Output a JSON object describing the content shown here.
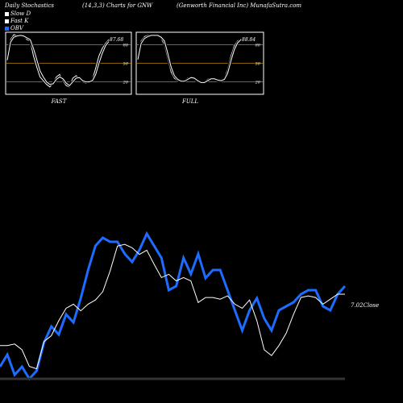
{
  "header": {
    "left": "Daily Stochastics",
    "mid": "(14,3,3) Charts for GNW",
    "right": "(Genworth Financial Inc) MunafaSutra.com"
  },
  "legend": [
    {
      "label": "Slow  D",
      "color": "#ffffff"
    },
    {
      "label": "Fast K",
      "color": "#ffffff"
    },
    {
      "label": "OBV",
      "color": "#1e6cff"
    }
  ],
  "colors": {
    "background": "#000000",
    "obv": "#1e6cff",
    "price": "#ffffff",
    "refline": "#b8860b"
  },
  "chart_data": [
    {
      "type": "line",
      "title": "FAST",
      "last_value_label": "87.68",
      "ylim": [
        0,
        100
      ],
      "yticks": [
        {
          "value": 80,
          "label": "80"
        },
        {
          "value": 50,
          "label": "50"
        },
        {
          "value": 20,
          "label": "20"
        }
      ],
      "series": [
        {
          "name": "Fast K",
          "values": [
            58,
            88,
            96,
            95,
            96,
            94,
            88,
            86,
            62,
            44,
            28,
            22,
            16,
            12,
            18,
            28,
            32,
            22,
            14,
            12,
            26,
            30,
            26,
            20,
            18,
            20,
            24,
            42,
            62,
            74,
            82,
            88
          ]
        },
        {
          "name": "Slow  D",
          "values": [
            55,
            84,
            92,
            94,
            95,
            94,
            91,
            88,
            74,
            56,
            38,
            28,
            20,
            16,
            17,
            24,
            28,
            25,
            18,
            14,
            20,
            26,
            27,
            22,
            20,
            20,
            22,
            32,
            50,
            66,
            78,
            85
          ]
        }
      ]
    },
    {
      "type": "line",
      "title": "FULL",
      "last_value_label": "88.84",
      "ylim": [
        0,
        100
      ],
      "yticks": [
        {
          "value": 80,
          "label": "80"
        },
        {
          "value": 50,
          "label": "50"
        },
        {
          "value": 20,
          "label": "20"
        }
      ],
      "series": [
        {
          "name": "Fast K",
          "values": [
            60,
            86,
            93,
            95,
            96,
            96,
            94,
            90,
            80,
            58,
            36,
            26,
            22,
            20,
            22,
            26,
            28,
            24,
            20,
            18,
            20,
            24,
            26,
            24,
            22,
            22,
            26,
            40,
            62,
            78,
            86,
            89
          ]
        },
        {
          "name": "Slow  D",
          "values": [
            56,
            82,
            90,
            93,
            95,
            95,
            95,
            92,
            86,
            66,
            44,
            30,
            24,
            21,
            21,
            24,
            27,
            26,
            22,
            19,
            19,
            22,
            25,
            25,
            23,
            22,
            24,
            34,
            54,
            72,
            83,
            88
          ]
        }
      ]
    },
    {
      "type": "line",
      "last_value_label": "7.02",
      "value_suffix": "Close",
      "series": [
        {
          "name": "Close",
          "values": [
            6.4,
            6.4,
            6.42,
            6.35,
            6.15,
            6.12,
            6.45,
            6.52,
            6.7,
            6.85,
            6.9,
            6.82,
            6.9,
            6.95,
            7.05,
            7.3,
            7.6,
            7.62,
            7.58,
            7.5,
            7.55,
            7.38,
            7.22,
            7.26,
            7.18,
            7.22,
            7.18,
            6.92,
            6.98,
            6.98,
            6.96,
            7.0,
            6.9,
            6.85,
            6.95,
            6.7,
            6.35,
            6.28,
            6.4,
            6.55,
            6.78,
            6.98,
            7.0,
            6.98,
            6.9,
            6.96,
            7.02,
            7.02
          ]
        },
        {
          "name": "OBV",
          "values": [
            5.2,
            5.5,
            5.0,
            5.2,
            4.9,
            5.1,
            5.8,
            6.2,
            6.0,
            6.5,
            6.3,
            6.9,
            7.6,
            8.2,
            8.4,
            8.3,
            8.3,
            8.0,
            7.8,
            8.1,
            8.5,
            8.2,
            7.9,
            7.1,
            7.2,
            7.9,
            7.5,
            8.0,
            7.4,
            7.6,
            7.6,
            7.1,
            6.6,
            6.1,
            6.6,
            6.9,
            6.4,
            6.1,
            6.6,
            6.7,
            6.8,
            7.0,
            7.1,
            7.1,
            6.7,
            6.6,
            7.0,
            7.2
          ]
        }
      ]
    }
  ]
}
